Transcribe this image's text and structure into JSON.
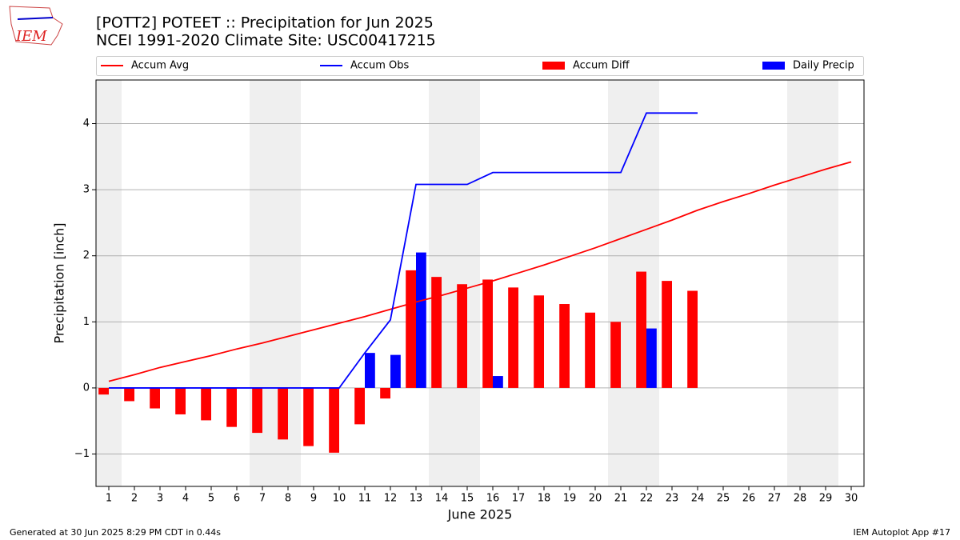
{
  "chart_data": {
    "type": "combo",
    "title": "[POTT2] POTEET :: Precipitation for Jun 2025",
    "subtitle": "NCEI 1991-2020 Climate Site: USC00417215",
    "logo_text": "IEM",
    "xlabel": "June 2025",
    "ylabel": "Precipitation [inch]",
    "footer_left": "Generated at 30 Jun 2025 8:29 PM CDT in 0.44s",
    "footer_right": "IEM Autoplot App #17",
    "x": [
      1,
      2,
      3,
      4,
      5,
      6,
      7,
      8,
      9,
      10,
      11,
      12,
      13,
      14,
      15,
      16,
      17,
      18,
      19,
      20,
      21,
      22,
      23,
      24,
      25,
      26,
      27,
      28,
      29,
      30
    ],
    "xlim": [
      0.5,
      30.5
    ],
    "xticks": [
      1,
      2,
      3,
      4,
      5,
      6,
      7,
      8,
      9,
      10,
      11,
      12,
      13,
      14,
      15,
      16,
      17,
      18,
      19,
      20,
      21,
      22,
      23,
      24,
      25,
      26,
      27,
      28,
      29,
      30
    ],
    "ylim": [
      -1.49,
      4.66
    ],
    "yticks": [
      {
        "value": -1,
        "label": "−1"
      },
      0,
      1,
      2,
      3,
      4
    ],
    "grid": true,
    "shaded_days": [
      1,
      7,
      8,
      14,
      15,
      21,
      22,
      28,
      29
    ],
    "series": [
      {
        "name": "Accum Avg",
        "type": "line",
        "color": "#ff0000",
        "values": [
          0.1,
          0.2,
          0.31,
          0.4,
          0.49,
          0.59,
          0.68,
          0.78,
          0.88,
          0.98,
          1.08,
          1.19,
          1.3,
          1.4,
          1.51,
          1.62,
          1.74,
          1.86,
          1.99,
          2.12,
          2.26,
          2.4,
          2.54,
          2.69,
          2.82,
          2.94,
          3.07,
          3.19,
          3.31,
          3.42
        ]
      },
      {
        "name": "Accum Obs",
        "type": "line",
        "color": "#0000ff",
        "values": [
          0,
          0,
          0,
          0,
          0,
          0,
          0,
          0,
          0,
          0,
          0.53,
          1.03,
          3.08,
          3.08,
          3.08,
          3.26,
          3.26,
          3.26,
          3.26,
          3.26,
          3.26,
          4.16,
          4.16,
          4.16,
          null,
          null,
          null,
          null,
          null,
          null
        ]
      },
      {
        "name": "Accum Diff",
        "type": "bar",
        "color": "#ff0000",
        "values": [
          -0.1,
          -0.2,
          -0.31,
          -0.4,
          -0.49,
          -0.59,
          -0.68,
          -0.78,
          -0.88,
          -0.98,
          -0.55,
          -0.16,
          1.78,
          1.68,
          1.57,
          1.64,
          1.52,
          1.4,
          1.27,
          1.14,
          1.0,
          1.76,
          1.62,
          1.47,
          null,
          null,
          null,
          null,
          null,
          null
        ]
      },
      {
        "name": "Daily Precip",
        "type": "bar",
        "color": "#0000ff",
        "values": [
          0,
          0,
          0,
          0,
          0,
          0,
          0,
          0,
          0,
          0,
          0.53,
          0.5,
          2.05,
          0,
          0,
          0.18,
          0,
          0,
          0,
          0,
          0,
          0.9,
          0,
          0,
          null,
          null,
          null,
          null,
          null,
          null
        ]
      }
    ]
  }
}
